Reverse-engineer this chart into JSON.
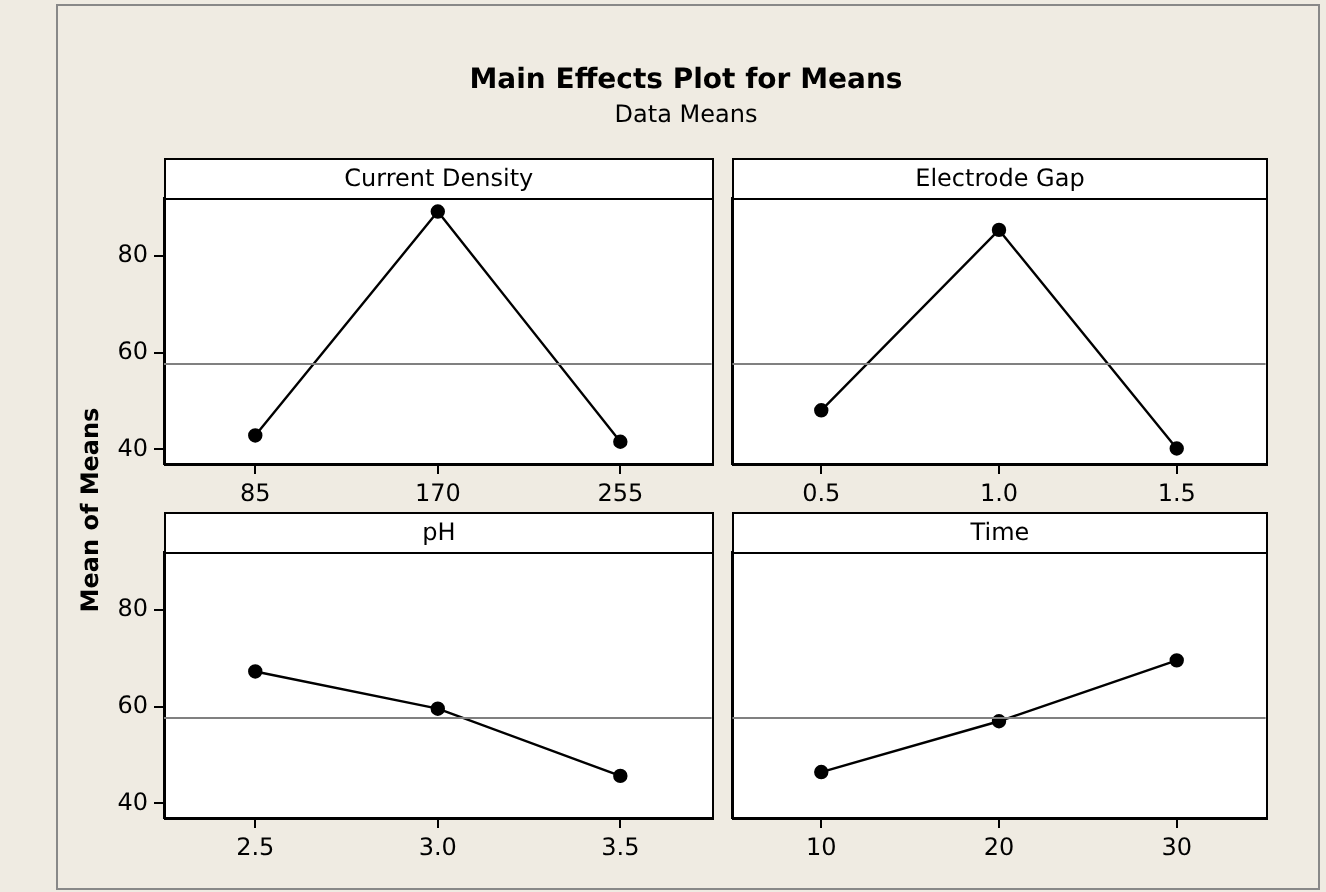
{
  "chart_data": [
    {
      "type": "line",
      "title": "Current Density",
      "ylabel": "Mean of Means",
      "annotations": [
        "Main Effects Plot for Means",
        "Data Means"
      ],
      "categories": [
        "85",
        "170",
        "255"
      ],
      "series": [
        {
          "color": "#000000",
          "values": [
            42.9,
            89.2,
            41.6
          ]
        }
      ],
      "ylim": [
        37,
        92
      ],
      "yticks": [
        40,
        60,
        80
      ],
      "ref_lines": [
        {
          "axis": "y",
          "value": 57.7,
          "color": "#808080"
        }
      ],
      "marker": "circle",
      "tick_labels": "xy"
    },
    {
      "type": "line",
      "title": "Electrode Gap",
      "categories": [
        "0.5",
        "1.0",
        "1.5"
      ],
      "series": [
        {
          "color": "#000000",
          "values": [
            48.1,
            85.4,
            40.2
          ]
        }
      ],
      "ylim": [
        37,
        92
      ],
      "yticks": [
        40,
        60,
        80
      ],
      "ref_lines": [
        {
          "axis": "y",
          "value": 57.7,
          "color": "#808080"
        }
      ],
      "marker": "circle",
      "tick_labels": "x"
    },
    {
      "type": "line",
      "title": "pH",
      "categories": [
        "2.5",
        "3.0",
        "3.5"
      ],
      "series": [
        {
          "color": "#000000",
          "values": [
            67.3,
            59.6,
            45.7
          ]
        }
      ],
      "ylim": [
        37,
        92
      ],
      "yticks": [
        40,
        60,
        80
      ],
      "ref_lines": [
        {
          "axis": "y",
          "value": 57.7,
          "color": "#808080"
        }
      ],
      "marker": "circle",
      "tick_labels": "xy"
    },
    {
      "type": "line",
      "title": "Time",
      "categories": [
        "10",
        "20",
        "30"
      ],
      "series": [
        {
          "color": "#000000",
          "values": [
            46.5,
            57.0,
            69.6
          ]
        }
      ],
      "ylim": [
        37,
        92
      ],
      "yticks": [
        40,
        60,
        80
      ],
      "ref_lines": [
        {
          "axis": "y",
          "value": 57.7,
          "color": "#808080"
        }
      ],
      "marker": "circle",
      "tick_labels": "x"
    }
  ]
}
